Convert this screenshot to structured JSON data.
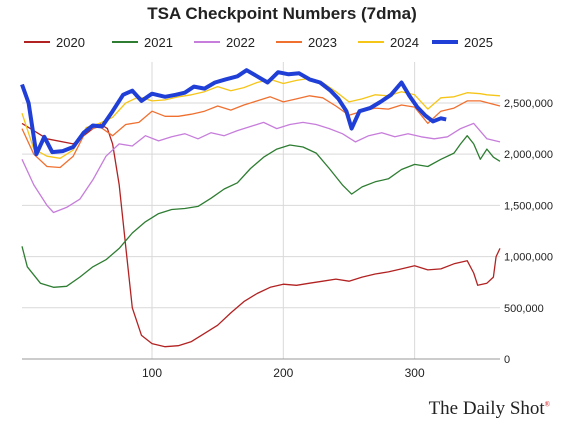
{
  "chart_data": {
    "type": "line",
    "title": "TSA Checkpoint Numbers (7dma)",
    "xlabel": "",
    "ylabel": "",
    "xlim": [
      1,
      365
    ],
    "ylim": [
      0,
      2900000
    ],
    "x_ticks": [
      100,
      200,
      300
    ],
    "y_ticks": [
      0,
      500000,
      1000000,
      1500000,
      2000000,
      2500000
    ],
    "y_tick_labels": [
      "0",
      "500,000",
      "1,000,000",
      "1,500,000",
      "2,000,000",
      "2,500,000"
    ],
    "legend_position": "top",
    "grid": true,
    "series": [
      {
        "name": "2020",
        "color": "#b22222",
        "points": [
          [
            1,
            2300000
          ],
          [
            20,
            2150000
          ],
          [
            40,
            2100000
          ],
          [
            55,
            2250000
          ],
          [
            60,
            2300000
          ],
          [
            66,
            2250000
          ],
          [
            70,
            2100000
          ],
          [
            75,
            1700000
          ],
          [
            80,
            1100000
          ],
          [
            85,
            500000
          ],
          [
            92,
            230000
          ],
          [
            100,
            150000
          ],
          [
            110,
            120000
          ],
          [
            120,
            130000
          ],
          [
            130,
            170000
          ],
          [
            140,
            250000
          ],
          [
            150,
            330000
          ],
          [
            160,
            450000
          ],
          [
            170,
            560000
          ],
          [
            180,
            640000
          ],
          [
            190,
            700000
          ],
          [
            200,
            730000
          ],
          [
            210,
            720000
          ],
          [
            220,
            740000
          ],
          [
            230,
            760000
          ],
          [
            240,
            780000
          ],
          [
            250,
            760000
          ],
          [
            260,
            800000
          ],
          [
            270,
            830000
          ],
          [
            280,
            850000
          ],
          [
            290,
            880000
          ],
          [
            300,
            910000
          ],
          [
            310,
            870000
          ],
          [
            320,
            880000
          ],
          [
            330,
            930000
          ],
          [
            340,
            960000
          ],
          [
            345,
            840000
          ],
          [
            348,
            720000
          ],
          [
            355,
            740000
          ],
          [
            360,
            800000
          ],
          [
            362,
            1000000
          ],
          [
            365,
            1080000
          ]
        ]
      },
      {
        "name": "2021",
        "color": "#2e7d32",
        "points": [
          [
            1,
            1100000
          ],
          [
            5,
            900000
          ],
          [
            15,
            740000
          ],
          [
            25,
            700000
          ],
          [
            35,
            710000
          ],
          [
            45,
            800000
          ],
          [
            55,
            900000
          ],
          [
            65,
            970000
          ],
          [
            75,
            1080000
          ],
          [
            85,
            1230000
          ],
          [
            95,
            1340000
          ],
          [
            105,
            1420000
          ],
          [
            115,
            1460000
          ],
          [
            125,
            1470000
          ],
          [
            135,
            1490000
          ],
          [
            145,
            1570000
          ],
          [
            155,
            1660000
          ],
          [
            165,
            1720000
          ],
          [
            175,
            1860000
          ],
          [
            185,
            1970000
          ],
          [
            195,
            2050000
          ],
          [
            205,
            2090000
          ],
          [
            215,
            2070000
          ],
          [
            225,
            2010000
          ],
          [
            235,
            1860000
          ],
          [
            245,
            1700000
          ],
          [
            252,
            1610000
          ],
          [
            260,
            1680000
          ],
          [
            270,
            1730000
          ],
          [
            280,
            1760000
          ],
          [
            290,
            1850000
          ],
          [
            300,
            1900000
          ],
          [
            310,
            1880000
          ],
          [
            320,
            1950000
          ],
          [
            330,
            2010000
          ],
          [
            335,
            2100000
          ],
          [
            340,
            2180000
          ],
          [
            345,
            2100000
          ],
          [
            350,
            1950000
          ],
          [
            355,
            2050000
          ],
          [
            360,
            1970000
          ],
          [
            365,
            1930000
          ]
        ]
      },
      {
        "name": "2022",
        "color": "#c77ddb",
        "points": [
          [
            1,
            1950000
          ],
          [
            10,
            1700000
          ],
          [
            20,
            1500000
          ],
          [
            25,
            1430000
          ],
          [
            35,
            1480000
          ],
          [
            45,
            1560000
          ],
          [
            55,
            1750000
          ],
          [
            65,
            1980000
          ],
          [
            75,
            2100000
          ],
          [
            85,
            2080000
          ],
          [
            95,
            2180000
          ],
          [
            105,
            2130000
          ],
          [
            115,
            2170000
          ],
          [
            125,
            2200000
          ],
          [
            135,
            2150000
          ],
          [
            145,
            2210000
          ],
          [
            155,
            2180000
          ],
          [
            165,
            2230000
          ],
          [
            175,
            2270000
          ],
          [
            185,
            2310000
          ],
          [
            195,
            2250000
          ],
          [
            205,
            2290000
          ],
          [
            215,
            2310000
          ],
          [
            225,
            2290000
          ],
          [
            235,
            2250000
          ],
          [
            245,
            2200000
          ],
          [
            255,
            2120000
          ],
          [
            265,
            2180000
          ],
          [
            275,
            2210000
          ],
          [
            285,
            2170000
          ],
          [
            295,
            2200000
          ],
          [
            305,
            2170000
          ],
          [
            315,
            2150000
          ],
          [
            325,
            2170000
          ],
          [
            335,
            2250000
          ],
          [
            345,
            2300000
          ],
          [
            355,
            2150000
          ],
          [
            365,
            2120000
          ]
        ]
      },
      {
        "name": "2023",
        "color": "#f07030",
        "points": [
          [
            1,
            2250000
          ],
          [
            10,
            2000000
          ],
          [
            20,
            1880000
          ],
          [
            30,
            1870000
          ],
          [
            40,
            1980000
          ],
          [
            50,
            2230000
          ],
          [
            60,
            2270000
          ],
          [
            70,
            2180000
          ],
          [
            80,
            2290000
          ],
          [
            90,
            2310000
          ],
          [
            100,
            2420000
          ],
          [
            110,
            2370000
          ],
          [
            120,
            2370000
          ],
          [
            130,
            2390000
          ],
          [
            140,
            2420000
          ],
          [
            150,
            2470000
          ],
          [
            160,
            2430000
          ],
          [
            170,
            2480000
          ],
          [
            180,
            2520000
          ],
          [
            190,
            2560000
          ],
          [
            200,
            2510000
          ],
          [
            210,
            2540000
          ],
          [
            220,
            2570000
          ],
          [
            230,
            2550000
          ],
          [
            240,
            2470000
          ],
          [
            250,
            2380000
          ],
          [
            260,
            2420000
          ],
          [
            270,
            2450000
          ],
          [
            280,
            2440000
          ],
          [
            290,
            2480000
          ],
          [
            300,
            2460000
          ],
          [
            310,
            2300000
          ],
          [
            320,
            2420000
          ],
          [
            330,
            2450000
          ],
          [
            340,
            2520000
          ],
          [
            350,
            2520000
          ],
          [
            365,
            2470000
          ]
        ]
      },
      {
        "name": "2024",
        "color": "#f5c518",
        "points": [
          [
            1,
            2400000
          ],
          [
            10,
            2050000
          ],
          [
            20,
            1980000
          ],
          [
            30,
            1960000
          ],
          [
            40,
            2040000
          ],
          [
            50,
            2260000
          ],
          [
            60,
            2300000
          ],
          [
            70,
            2360000
          ],
          [
            80,
            2500000
          ],
          [
            90,
            2560000
          ],
          [
            100,
            2520000
          ],
          [
            110,
            2530000
          ],
          [
            120,
            2560000
          ],
          [
            130,
            2580000
          ],
          [
            140,
            2610000
          ],
          [
            150,
            2660000
          ],
          [
            160,
            2620000
          ],
          [
            170,
            2650000
          ],
          [
            180,
            2700000
          ],
          [
            190,
            2730000
          ],
          [
            200,
            2690000
          ],
          [
            210,
            2720000
          ],
          [
            220,
            2740000
          ],
          [
            230,
            2700000
          ],
          [
            240,
            2610000
          ],
          [
            250,
            2510000
          ],
          [
            260,
            2540000
          ],
          [
            270,
            2580000
          ],
          [
            280,
            2570000
          ],
          [
            290,
            2610000
          ],
          [
            300,
            2580000
          ],
          [
            310,
            2440000
          ],
          [
            320,
            2550000
          ],
          [
            330,
            2560000
          ],
          [
            340,
            2600000
          ],
          [
            350,
            2590000
          ],
          [
            355,
            2580000
          ],
          [
            365,
            2570000
          ]
        ]
      },
      {
        "name": "2025",
        "color": "#1f3fd6",
        "points": [
          [
            1,
            2680000
          ],
          [
            6,
            2500000
          ],
          [
            12,
            2000000
          ],
          [
            18,
            2170000
          ],
          [
            24,
            2020000
          ],
          [
            32,
            2030000
          ],
          [
            40,
            2070000
          ],
          [
            48,
            2210000
          ],
          [
            55,
            2280000
          ],
          [
            62,
            2270000
          ],
          [
            70,
            2420000
          ],
          [
            78,
            2580000
          ],
          [
            85,
            2620000
          ],
          [
            92,
            2520000
          ],
          [
            100,
            2590000
          ],
          [
            110,
            2560000
          ],
          [
            118,
            2580000
          ],
          [
            125,
            2600000
          ],
          [
            132,
            2660000
          ],
          [
            140,
            2640000
          ],
          [
            148,
            2700000
          ],
          [
            156,
            2730000
          ],
          [
            165,
            2760000
          ],
          [
            172,
            2820000
          ],
          [
            180,
            2760000
          ],
          [
            188,
            2700000
          ],
          [
            196,
            2800000
          ],
          [
            204,
            2780000
          ],
          [
            212,
            2790000
          ],
          [
            220,
            2730000
          ],
          [
            228,
            2700000
          ],
          [
            236,
            2620000
          ],
          [
            242,
            2540000
          ],
          [
            248,
            2420000
          ],
          [
            252,
            2250000
          ],
          [
            258,
            2420000
          ],
          [
            266,
            2450000
          ],
          [
            274,
            2510000
          ],
          [
            282,
            2580000
          ],
          [
            290,
            2700000
          ],
          [
            296,
            2570000
          ],
          [
            302,
            2460000
          ],
          [
            308,
            2380000
          ],
          [
            314,
            2320000
          ],
          [
            320,
            2350000
          ],
          [
            324,
            2340000
          ]
        ]
      }
    ]
  },
  "branding": {
    "text": "The Daily Shot",
    "mark": "®"
  }
}
